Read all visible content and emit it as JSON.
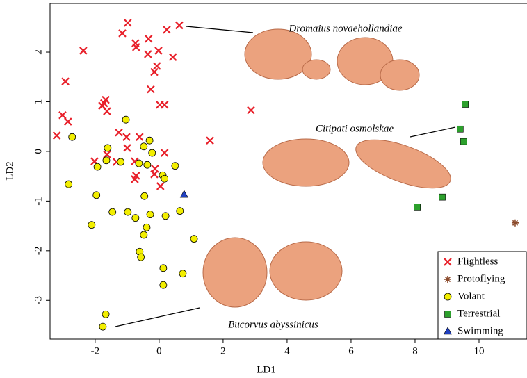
{
  "chart_data": {
    "type": "scatter",
    "x_label": "LD1",
    "y_label": "LD2",
    "xlim": [
      -3.41,
      11.5
    ],
    "ylim": [
      -3.78,
      2.98
    ],
    "xticks": [
      -2,
      0,
      2,
      4,
      6,
      8,
      10
    ],
    "yticks": [
      -3,
      -2,
      -1,
      0,
      1,
      2
    ],
    "grid": false,
    "legend_position": "lower right",
    "annotations": [
      "Dromaius novaehollandiae",
      "Citipati osmolskae",
      "Bucorvus abyssinicus"
    ],
    "series": [
      {
        "name": "Flightless",
        "marker": "x",
        "color": "#e8202a",
        "x": [
          -0.98,
          -1.15,
          -0.33,
          0.24,
          0.63,
          -0.74,
          -0.72,
          -0.02,
          -0.35,
          0.43,
          -2.37,
          -0.07,
          -0.15,
          -2.93,
          -0.26,
          -1.67,
          -1.72,
          -1.78,
          -1.63,
          -3.02,
          -2.85,
          0.02,
          0.17,
          2.87,
          -3.2,
          -1.26,
          -1.02,
          -0.61,
          -1.0,
          -1.63,
          0.17,
          1.59,
          -2.02,
          -0.76,
          -1.33,
          -0.15,
          -0.13,
          -0.72,
          -0.76,
          0.04
        ],
        "y": [
          2.59,
          2.38,
          2.27,
          2.45,
          2.54,
          2.18,
          2.1,
          2.03,
          1.96,
          1.9,
          2.03,
          1.72,
          1.6,
          1.41,
          1.25,
          1.04,
          0.97,
          0.92,
          0.81,
          0.73,
          0.6,
          0.94,
          0.94,
          0.83,
          0.32,
          0.38,
          0.29,
          0.29,
          0.07,
          -0.06,
          -0.03,
          0.22,
          -0.2,
          -0.2,
          -0.21,
          -0.46,
          -0.35,
          -0.49,
          -0.56,
          -0.7
        ]
      },
      {
        "name": "Protoflying",
        "marker": "asterisk",
        "color": "#8b4a2b",
        "x": [
          11.13
        ],
        "y": [
          -1.44
        ]
      },
      {
        "name": "Volant",
        "marker": "circle",
        "color": "#f2ee00",
        "x": [
          -1.04,
          -0.3,
          -2.72,
          -1.61,
          -0.48,
          -0.22,
          -1.65,
          -1.2,
          -0.63,
          -0.37,
          0.5,
          -1.93,
          0.11,
          0.17,
          -2.83,
          -1.96,
          -0.46,
          -0.98,
          -1.46,
          -0.28,
          0.2,
          0.65,
          -0.74,
          -0.39,
          -2.11,
          -0.48,
          1.09,
          -0.61,
          -0.57,
          0.13,
          0.13,
          0.74,
          -1.67,
          -1.76
        ],
        "y": [
          0.64,
          0.22,
          0.29,
          0.07,
          0.1,
          -0.03,
          -0.18,
          -0.21,
          -0.24,
          -0.27,
          -0.29,
          -0.31,
          -0.48,
          -0.55,
          -0.66,
          -0.88,
          -0.9,
          -1.22,
          -1.22,
          -1.27,
          -1.3,
          -1.2,
          -1.34,
          -1.53,
          -1.48,
          -1.68,
          -1.76,
          -2.02,
          -2.13,
          -2.35,
          -2.69,
          -2.46,
          -3.28,
          -3.53
        ]
      },
      {
        "name": "Terrestrial",
        "marker": "square",
        "color": "#2ca02c",
        "x": [
          9.57,
          9.41,
          9.52,
          8.07,
          8.85
        ],
        "y": [
          0.95,
          0.45,
          0.2,
          -1.12,
          -0.92
        ]
      },
      {
        "name": "Swimming",
        "marker": "triangle",
        "color": "#2040c0",
        "x": [
          0.78
        ],
        "y": [
          -0.87
        ]
      }
    ]
  }
}
